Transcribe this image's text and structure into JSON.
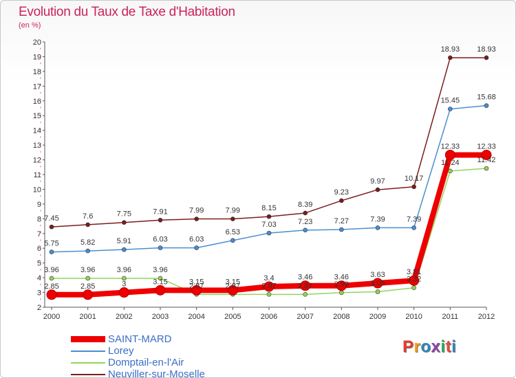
{
  "title": "Evolution du Taux de Taxe d'Habitation",
  "subtitle": "(en %)",
  "logo": {
    "text": "Proxiti",
    "colors": [
      "#e83b2e",
      "#f39c12",
      "#2e86c1",
      "#8e44ad",
      "#27ae60",
      "#e74c3c",
      "#2e86c1"
    ]
  },
  "chart_data": {
    "type": "line",
    "title": "Evolution du Taux de Taxe d'Habitation",
    "ylabel": "(en %)",
    "xlabel": "",
    "x": [
      "2000",
      "2001",
      "2002",
      "2003",
      "2004",
      "2005",
      "2006",
      "2007",
      "2008",
      "2009",
      "2010",
      "2011",
      "2012"
    ],
    "ylim": [
      2,
      20
    ],
    "yticks": [
      "2",
      "3",
      "4",
      "5",
      "6",
      "7",
      "8",
      "9",
      "10",
      "11",
      "12",
      "13",
      "14",
      "15",
      "16",
      "17",
      "18",
      "19",
      "20"
    ],
    "grid": false,
    "legend_position": "bottom-left",
    "series": [
      {
        "name": "SAINT-MARD",
        "color": "#ee0000",
        "values": [
          2.85,
          2.85,
          3,
          3.15,
          3.15,
          3.15,
          3.4,
          3.46,
          3.46,
          3.63,
          3.81,
          12.33,
          12.33
        ],
        "labels": [
          "2.85",
          "2.85",
          "3",
          "3.15",
          "3.15",
          "3.15",
          "3.4",
          "3.46",
          "3.46",
          "3.63",
          "3.81",
          "12.33",
          "12.33"
        ]
      },
      {
        "name": "Lorey",
        "color": "#4a8ecf",
        "values": [
          5.75,
          5.82,
          5.91,
          6.03,
          6.03,
          6.53,
          7.03,
          7.23,
          7.27,
          7.39,
          7.39,
          15.45,
          15.68
        ],
        "labels": [
          "5.75",
          "5.82",
          "5.91",
          "6.03",
          "6.03",
          "6.53",
          "7.03",
          "7.23",
          "7.27",
          "7.39",
          "7.39",
          "15.45",
          "15.68"
        ]
      },
      {
        "name": "Domptail-en-l'Air",
        "color": "#93d45a",
        "values": [
          3.96,
          3.96,
          3.96,
          3.96,
          2.87,
          2.87,
          2.87,
          2.87,
          2.99,
          3.05,
          3.32,
          11.24,
          11.42
        ],
        "labels": [
          "3.96",
          "3.96",
          "3.96",
          "3.96",
          "2.87",
          "2.87",
          "2.87",
          "2.87",
          "2.99",
          "3.05",
          "3.32",
          "11.24",
          "11.42"
        ]
      },
      {
        "name": "Neuviller-sur-Moselle",
        "color": "#7a1c1c",
        "values": [
          7.45,
          7.6,
          7.75,
          7.91,
          7.99,
          7.99,
          8.15,
          8.39,
          9.23,
          9.97,
          10.17,
          18.93,
          18.93
        ],
        "labels": [
          "7.45",
          "7.6",
          "7.75",
          "7.91",
          "7.99",
          "7.99",
          "8.15",
          "8.39",
          "9.23",
          "9.97",
          "10.17",
          "18.93",
          "18.93"
        ]
      }
    ]
  }
}
